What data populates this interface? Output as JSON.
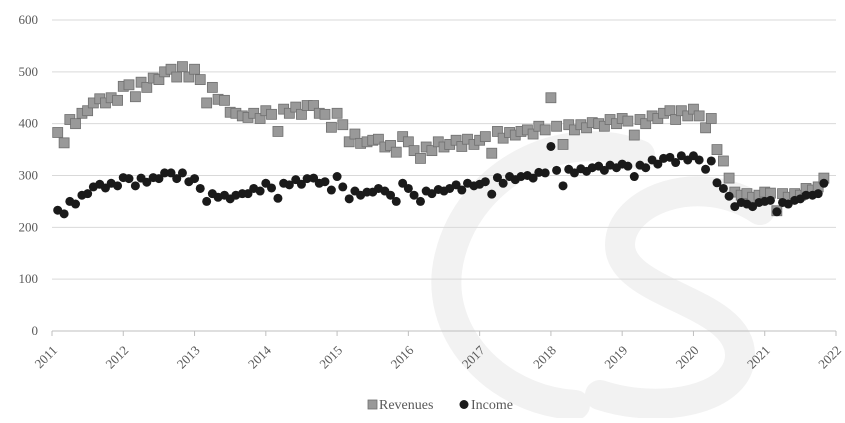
{
  "chart_data": {
    "type": "scatter",
    "title": "",
    "xlabel": "",
    "ylabel": "",
    "xlim": [
      2011,
      2022
    ],
    "ylim": [
      0,
      600
    ],
    "x_ticks": [
      "2011",
      "2012",
      "2013",
      "2014",
      "2015",
      "2016",
      "2017",
      "2018",
      "2019",
      "2020",
      "2021",
      "2022"
    ],
    "y_ticks": [
      "0",
      "100",
      "200",
      "300",
      "400",
      "500",
      "600"
    ],
    "grid": "horizontal",
    "legend": "bottom",
    "colors": {
      "revenues": "#999999",
      "income": "#1a1a1a",
      "grid": "#d9d9d9",
      "watermark": "#f2f2f2"
    },
    "series": [
      {
        "name": "Revenues",
        "marker": "square",
        "points": [
          [
            2011.08,
            383
          ],
          [
            2011.17,
            363
          ],
          [
            2011.25,
            408
          ],
          [
            2011.33,
            400
          ],
          [
            2011.42,
            420
          ],
          [
            2011.5,
            425
          ],
          [
            2011.58,
            440
          ],
          [
            2011.67,
            448
          ],
          [
            2011.75,
            440
          ],
          [
            2011.83,
            450
          ],
          [
            2011.92,
            445
          ],
          [
            2012.0,
            472
          ],
          [
            2012.08,
            475
          ],
          [
            2012.17,
            452
          ],
          [
            2012.25,
            480
          ],
          [
            2012.33,
            470
          ],
          [
            2012.42,
            488
          ],
          [
            2012.5,
            485
          ],
          [
            2012.58,
            500
          ],
          [
            2012.67,
            505
          ],
          [
            2012.75,
            490
          ],
          [
            2012.83,
            510
          ],
          [
            2012.92,
            490
          ],
          [
            2013.0,
            505
          ],
          [
            2013.08,
            485
          ],
          [
            2013.17,
            440
          ],
          [
            2013.25,
            470
          ],
          [
            2013.33,
            447
          ],
          [
            2013.42,
            445
          ],
          [
            2013.5,
            422
          ],
          [
            2013.58,
            420
          ],
          [
            2013.67,
            415
          ],
          [
            2013.75,
            412
          ],
          [
            2013.83,
            420
          ],
          [
            2013.92,
            410
          ],
          [
            2014.0,
            425
          ],
          [
            2014.08,
            418
          ],
          [
            2014.17,
            385
          ],
          [
            2014.25,
            428
          ],
          [
            2014.33,
            420
          ],
          [
            2014.42,
            432
          ],
          [
            2014.5,
            418
          ],
          [
            2014.58,
            435
          ],
          [
            2014.67,
            435
          ],
          [
            2014.75,
            420
          ],
          [
            2014.83,
            418
          ],
          [
            2014.92,
            393
          ],
          [
            2015.0,
            420
          ],
          [
            2015.08,
            398
          ],
          [
            2015.17,
            365
          ],
          [
            2015.25,
            380
          ],
          [
            2015.33,
            362
          ],
          [
            2015.42,
            365
          ],
          [
            2015.5,
            368
          ],
          [
            2015.58,
            370
          ],
          [
            2015.67,
            355
          ],
          [
            2015.75,
            358
          ],
          [
            2015.83,
            345
          ],
          [
            2015.92,
            375
          ],
          [
            2016.0,
            365
          ],
          [
            2016.08,
            348
          ],
          [
            2016.17,
            333
          ],
          [
            2016.25,
            355
          ],
          [
            2016.33,
            348
          ],
          [
            2016.42,
            365
          ],
          [
            2016.5,
            355
          ],
          [
            2016.58,
            360
          ],
          [
            2016.67,
            368
          ],
          [
            2016.75,
            356
          ],
          [
            2016.83,
            370
          ],
          [
            2016.92,
            360
          ],
          [
            2017.0,
            368
          ],
          [
            2017.08,
            375
          ],
          [
            2017.17,
            343
          ],
          [
            2017.25,
            385
          ],
          [
            2017.33,
            372
          ],
          [
            2017.42,
            383
          ],
          [
            2017.5,
            378
          ],
          [
            2017.58,
            385
          ],
          [
            2017.67,
            388
          ],
          [
            2017.75,
            380
          ],
          [
            2017.83,
            395
          ],
          [
            2017.92,
            388
          ],
          [
            2018.0,
            450
          ],
          [
            2018.08,
            395
          ],
          [
            2018.17,
            360
          ],
          [
            2018.25,
            398
          ],
          [
            2018.33,
            388
          ],
          [
            2018.42,
            398
          ],
          [
            2018.5,
            392
          ],
          [
            2018.58,
            402
          ],
          [
            2018.67,
            400
          ],
          [
            2018.75,
            395
          ],
          [
            2018.83,
            408
          ],
          [
            2018.92,
            400
          ],
          [
            2019.0,
            410
          ],
          [
            2019.08,
            405
          ],
          [
            2019.17,
            378
          ],
          [
            2019.25,
            408
          ],
          [
            2019.33,
            400
          ],
          [
            2019.42,
            415
          ],
          [
            2019.5,
            410
          ],
          [
            2019.58,
            420
          ],
          [
            2019.67,
            425
          ],
          [
            2019.75,
            408
          ],
          [
            2019.83,
            425
          ],
          [
            2019.92,
            415
          ],
          [
            2020.0,
            428
          ],
          [
            2020.08,
            415
          ],
          [
            2020.17,
            392
          ],
          [
            2020.25,
            410
          ],
          [
            2020.33,
            350
          ],
          [
            2020.42,
            328
          ],
          [
            2020.5,
            295
          ],
          [
            2020.58,
            268
          ],
          [
            2020.67,
            262
          ],
          [
            2020.75,
            265
          ],
          [
            2020.83,
            258
          ],
          [
            2020.92,
            262
          ],
          [
            2021.0,
            268
          ],
          [
            2021.08,
            266
          ],
          [
            2021.17,
            232
          ],
          [
            2021.25,
            265
          ],
          [
            2021.33,
            258
          ],
          [
            2021.42,
            265
          ],
          [
            2021.5,
            262
          ],
          [
            2021.58,
            275
          ],
          [
            2021.67,
            272
          ],
          [
            2021.75,
            278
          ],
          [
            2021.83,
            295
          ]
        ]
      },
      {
        "name": "Income",
        "marker": "circle",
        "points": [
          [
            2011.08,
            233
          ],
          [
            2011.17,
            226
          ],
          [
            2011.25,
            250
          ],
          [
            2011.33,
            245
          ],
          [
            2011.42,
            262
          ],
          [
            2011.5,
            265
          ],
          [
            2011.58,
            278
          ],
          [
            2011.67,
            283
          ],
          [
            2011.75,
            276
          ],
          [
            2011.83,
            285
          ],
          [
            2011.92,
            280
          ],
          [
            2012.0,
            296
          ],
          [
            2012.08,
            294
          ],
          [
            2012.17,
            280
          ],
          [
            2012.25,
            295
          ],
          [
            2012.33,
            287
          ],
          [
            2012.42,
            296
          ],
          [
            2012.5,
            294
          ],
          [
            2012.58,
            305
          ],
          [
            2012.67,
            305
          ],
          [
            2012.75,
            294
          ],
          [
            2012.83,
            305
          ],
          [
            2012.92,
            288
          ],
          [
            2013.0,
            294
          ],
          [
            2013.08,
            275
          ],
          [
            2013.17,
            250
          ],
          [
            2013.25,
            265
          ],
          [
            2013.33,
            258
          ],
          [
            2013.42,
            262
          ],
          [
            2013.5,
            255
          ],
          [
            2013.58,
            262
          ],
          [
            2013.67,
            265
          ],
          [
            2013.75,
            265
          ],
          [
            2013.83,
            275
          ],
          [
            2013.92,
            270
          ],
          [
            2014.0,
            285
          ],
          [
            2014.08,
            276
          ],
          [
            2014.17,
            256
          ],
          [
            2014.25,
            285
          ],
          [
            2014.33,
            282
          ],
          [
            2014.42,
            292
          ],
          [
            2014.5,
            283
          ],
          [
            2014.58,
            294
          ],
          [
            2014.67,
            295
          ],
          [
            2014.75,
            285
          ],
          [
            2014.83,
            288
          ],
          [
            2014.92,
            272
          ],
          [
            2015.0,
            298
          ],
          [
            2015.08,
            278
          ],
          [
            2015.17,
            255
          ],
          [
            2015.25,
            270
          ],
          [
            2015.33,
            262
          ],
          [
            2015.42,
            268
          ],
          [
            2015.5,
            268
          ],
          [
            2015.58,
            275
          ],
          [
            2015.67,
            270
          ],
          [
            2015.75,
            262
          ],
          [
            2015.83,
            250
          ],
          [
            2015.92,
            285
          ],
          [
            2016.0,
            275
          ],
          [
            2016.08,
            262
          ],
          [
            2016.17,
            250
          ],
          [
            2016.25,
            270
          ],
          [
            2016.33,
            265
          ],
          [
            2016.42,
            273
          ],
          [
            2016.5,
            270
          ],
          [
            2016.58,
            275
          ],
          [
            2016.67,
            282
          ],
          [
            2016.75,
            272
          ],
          [
            2016.83,
            285
          ],
          [
            2016.92,
            280
          ],
          [
            2017.0,
            283
          ],
          [
            2017.08,
            288
          ],
          [
            2017.17,
            264
          ],
          [
            2017.25,
            296
          ],
          [
            2017.33,
            285
          ],
          [
            2017.42,
            298
          ],
          [
            2017.5,
            292
          ],
          [
            2017.58,
            298
          ],
          [
            2017.67,
            300
          ],
          [
            2017.75,
            295
          ],
          [
            2017.83,
            306
          ],
          [
            2017.92,
            305
          ],
          [
            2018.0,
            356
          ],
          [
            2018.08,
            310
          ],
          [
            2018.17,
            280
          ],
          [
            2018.25,
            312
          ],
          [
            2018.33,
            305
          ],
          [
            2018.42,
            313
          ],
          [
            2018.5,
            308
          ],
          [
            2018.58,
            315
          ],
          [
            2018.67,
            318
          ],
          [
            2018.75,
            310
          ],
          [
            2018.83,
            320
          ],
          [
            2018.92,
            315
          ],
          [
            2019.0,
            322
          ],
          [
            2019.08,
            318
          ],
          [
            2019.17,
            298
          ],
          [
            2019.25,
            320
          ],
          [
            2019.33,
            315
          ],
          [
            2019.42,
            330
          ],
          [
            2019.5,
            322
          ],
          [
            2019.58,
            333
          ],
          [
            2019.67,
            335
          ],
          [
            2019.75,
            325
          ],
          [
            2019.83,
            338
          ],
          [
            2019.92,
            330
          ],
          [
            2020.0,
            338
          ],
          [
            2020.08,
            330
          ],
          [
            2020.17,
            312
          ],
          [
            2020.25,
            328
          ],
          [
            2020.33,
            286
          ],
          [
            2020.42,
            275
          ],
          [
            2020.5,
            260
          ],
          [
            2020.58,
            240
          ],
          [
            2020.67,
            248
          ],
          [
            2020.75,
            245
          ],
          [
            2020.83,
            240
          ],
          [
            2020.92,
            248
          ],
          [
            2021.0,
            250
          ],
          [
            2021.08,
            252
          ],
          [
            2021.17,
            230
          ],
          [
            2021.25,
            248
          ],
          [
            2021.33,
            245
          ],
          [
            2021.42,
            252
          ],
          [
            2021.5,
            255
          ],
          [
            2021.58,
            262
          ],
          [
            2021.67,
            262
          ],
          [
            2021.75,
            265
          ],
          [
            2021.83,
            285
          ]
        ]
      }
    ]
  }
}
